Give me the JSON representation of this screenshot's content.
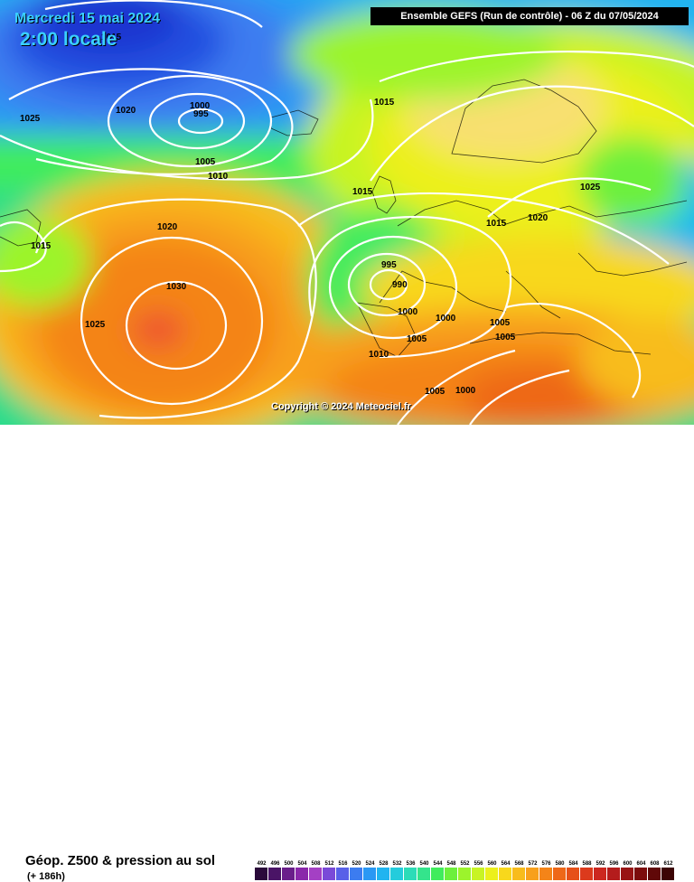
{
  "header": {
    "date": "Mercredi 15 mai 2024",
    "time": "2:00 locale",
    "run_info": "Ensemble GEFS  (Run de contrôle)  -  06 Z du 07/05/2024"
  },
  "copyright": "Copyright © 2024 Meteociel.fr",
  "footer": {
    "field_title": "Géop. Z500 & pression au sol",
    "lead_time": "(+ 186h)"
  },
  "isobar_labels": [
    "1025",
    "1020",
    "1000",
    "995",
    "1015",
    "1005",
    "1010",
    "1015",
    "1020",
    "1025",
    "1015",
    "1030",
    "1025",
    "995",
    "990",
    "1000",
    "1000",
    "1005",
    "1005",
    "1005",
    "1010",
    "1005",
    "1000",
    "1015",
    "1015",
    "1020"
  ],
  "legend": {
    "values": [
      "492",
      "496",
      "500",
      "504",
      "508",
      "512",
      "516",
      "520",
      "524",
      "528",
      "532",
      "536",
      "540",
      "544",
      "548",
      "552",
      "556",
      "560",
      "564",
      "568",
      "572",
      "576",
      "580",
      "584",
      "588",
      "592",
      "596",
      "600",
      "604",
      "608",
      "612"
    ],
    "colors": [
      "#2a0a3a",
      "#4a1466",
      "#6a1e8a",
      "#8a28aa",
      "#a440c4",
      "#7a4ad8",
      "#5860e8",
      "#3c7cf0",
      "#2a98f4",
      "#20b4f0",
      "#24ccdc",
      "#2cdcb8",
      "#34e48c",
      "#40ec5c",
      "#6cf03c",
      "#9cf42c",
      "#c8f424",
      "#ecf01c",
      "#f8d81c",
      "#f8bc1c",
      "#f8a01c",
      "#f48418",
      "#ee6818",
      "#e65018",
      "#dc3a1c",
      "#cc2820",
      "#b41c1c",
      "#981414",
      "#7c0c0c",
      "#600808",
      "#3c0404"
    ]
  }
}
